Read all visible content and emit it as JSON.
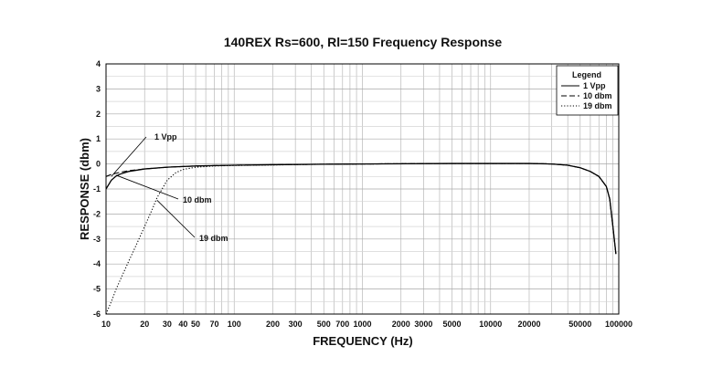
{
  "chart_data": {
    "type": "line",
    "title": "140REX Rs=600, Rl=150 Frequency Response",
    "xlabel": "FREQUENCY (Hz)",
    "ylabel": "RESPONSE (dbm)",
    "xscale": "log",
    "xlim": [
      10,
      100000
    ],
    "ylim": [
      -6,
      4
    ],
    "grid": true,
    "x_ticks": [
      {
        "value": 10,
        "label": "10"
      },
      {
        "value": 20,
        "label": "20"
      },
      {
        "value": 30,
        "label": "30"
      },
      {
        "value": 40,
        "label": "40"
      },
      {
        "value": 50,
        "label": "50"
      },
      {
        "value": 70,
        "label": "70"
      },
      {
        "value": 100,
        "label": "100"
      },
      {
        "value": 200,
        "label": "200"
      },
      {
        "value": 300,
        "label": "300"
      },
      {
        "value": 500,
        "label": "500"
      },
      {
        "value": 700,
        "label": "700"
      },
      {
        "value": 1000,
        "label": "1000"
      },
      {
        "value": 2000,
        "label": "2000"
      },
      {
        "value": 3000,
        "label": "3000"
      },
      {
        "value": 5000,
        "label": "5000"
      },
      {
        "value": 10000,
        "label": "10000"
      },
      {
        "value": 20000,
        "label": "20000"
      },
      {
        "value": 50000,
        "label": "50000"
      },
      {
        "value": 100000,
        "label": "100000"
      }
    ],
    "y_ticks": [
      4,
      3,
      2,
      1,
      0,
      -1,
      -2,
      -3,
      -4,
      -5,
      -6
    ],
    "legend": {
      "title": "Legend",
      "position": "top-right"
    },
    "series": [
      {
        "name": "1 Vpp",
        "style": "solid",
        "x": [
          10,
          11,
          12,
          13,
          15,
          20,
          30,
          50,
          100,
          200,
          500,
          1000,
          5000,
          10000,
          20000,
          30000,
          40000,
          50000,
          60000,
          70000,
          80000,
          85000,
          90000,
          95000
        ],
        "y": [
          -1.0,
          -0.65,
          -0.48,
          -0.4,
          -0.3,
          -0.2,
          -0.13,
          -0.08,
          -0.05,
          -0.03,
          -0.01,
          0.0,
          0.02,
          0.02,
          0.02,
          0.0,
          -0.05,
          -0.15,
          -0.3,
          -0.5,
          -0.9,
          -1.4,
          -2.5,
          -3.6
        ]
      },
      {
        "name": "10 dbm",
        "style": "dashed",
        "x": [
          10,
          11,
          12,
          13,
          15,
          20,
          30,
          50,
          100,
          200,
          500,
          1000,
          5000,
          10000,
          20000,
          30000,
          40000,
          50000,
          60000,
          70000,
          80000,
          85000,
          90000,
          95000
        ],
        "y": [
          -0.5,
          -0.42,
          -0.37,
          -0.33,
          -0.27,
          -0.2,
          -0.13,
          -0.08,
          -0.05,
          -0.03,
          -0.01,
          0.0,
          0.02,
          0.02,
          0.02,
          0.0,
          -0.05,
          -0.15,
          -0.3,
          -0.5,
          -0.9,
          -1.4,
          -2.5,
          -3.6
        ]
      },
      {
        "name": "19 dbm",
        "style": "dotted",
        "x": [
          10,
          11,
          12,
          13,
          15,
          17,
          20,
          23,
          25,
          30,
          35,
          40,
          50,
          70,
          100,
          200,
          500,
          1000,
          5000,
          10000,
          20000,
          30000,
          40000,
          50000,
          60000,
          70000,
          80000,
          85000,
          90000,
          95000
        ],
        "y": [
          -6.0,
          -5.5,
          -5.0,
          -4.6,
          -3.9,
          -3.3,
          -2.5,
          -1.8,
          -1.35,
          -0.65,
          -0.35,
          -0.22,
          -0.13,
          -0.08,
          -0.06,
          -0.04,
          -0.01,
          0.0,
          0.02,
          0.02,
          0.02,
          0.0,
          -0.05,
          -0.15,
          -0.3,
          -0.5,
          -0.9,
          -1.4,
          -2.5,
          -3.6
        ]
      }
    ],
    "annotations": [
      {
        "text": "1 Vpp",
        "target_x": 11,
        "target_y": -0.5
      },
      {
        "text": "10 dbm",
        "target_x": 12,
        "target_y": -0.45
      },
      {
        "text": "19 dbm",
        "target_x": 25,
        "target_y": -1.45
      }
    ]
  }
}
